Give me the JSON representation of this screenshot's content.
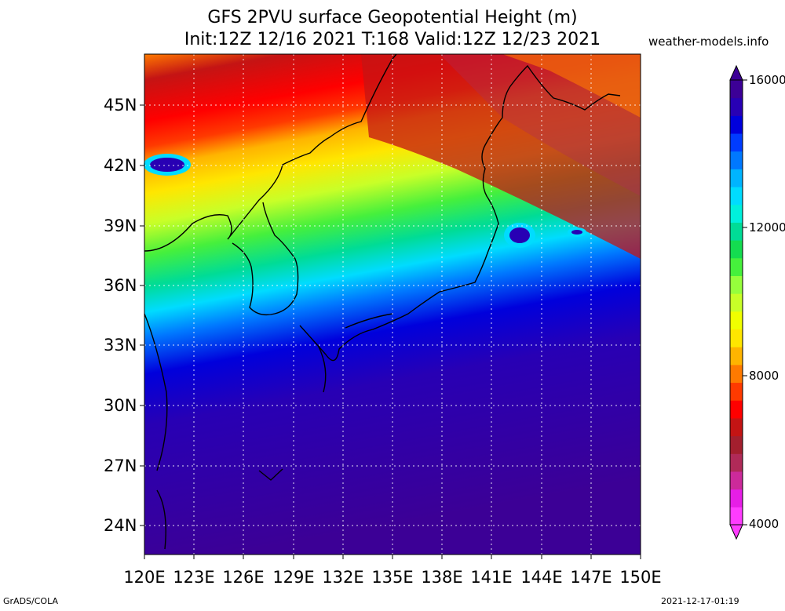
{
  "title": {
    "line1": "GFS 2PVU surface Geopotential Height (m)",
    "line2": "Init:12Z 12/16 2021 T:168 Valid:12Z 12/23 2021",
    "site": "weather-models.info"
  },
  "axes": {
    "lat_labels": [
      "45N",
      "42N",
      "39N",
      "36N",
      "33N",
      "30N",
      "27N",
      "24N"
    ],
    "lon_labels": [
      "120E",
      "123E",
      "126E",
      "129E",
      "132E",
      "135E",
      "138E",
      "141E",
      "144E",
      "147E",
      "150E"
    ]
  },
  "colorbar": {
    "labels": [
      "16000",
      "12000",
      "8000",
      "4000"
    ],
    "colors": [
      "#ff3cff",
      "#e61ee6",
      "#cc2a9a",
      "#b02a58",
      "#a31f2e",
      "#c41414",
      "#ff0000",
      "#ff3a00",
      "#ff7a00",
      "#ffb400",
      "#ffe600",
      "#f0ff00",
      "#c8ff28",
      "#96ff3c",
      "#46f03c",
      "#14dc50",
      "#00dc96",
      "#00f0dc",
      "#00dcff",
      "#00b4ff",
      "#0078ff",
      "#003cff",
      "#0000dc",
      "#2800b4",
      "#3c0096"
    ]
  },
  "footer": {
    "left": "GrADS/COLA",
    "right": "2021-12-17-01:19"
  }
}
